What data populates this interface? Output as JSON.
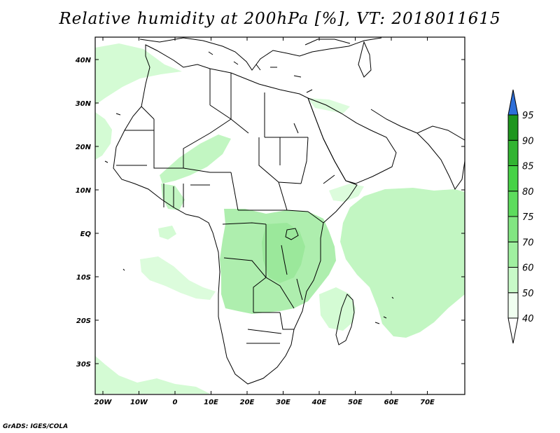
{
  "title": "Relative humidity at 200hPa [%], VT: 2018011615",
  "credit": "GrADS: IGES/COLA",
  "map": {
    "lon_labels": [
      "20W",
      "10W",
      "0",
      "10E",
      "20E",
      "30E",
      "40E",
      "50E",
      "60E",
      "70E"
    ],
    "lat_labels": [
      "40N",
      "30N",
      "20N",
      "10N",
      "EQ",
      "10S",
      "20S",
      "30S"
    ]
  },
  "colorbar": {
    "labels": [
      "40",
      "50",
      "60",
      "70",
      "75",
      "80",
      "85",
      "90",
      "95"
    ],
    "colors": [
      "#f0fff0",
      "#c8fac8",
      "#a0f0a0",
      "#82e682",
      "#5ddc5d",
      "#46d246",
      "#32b432",
      "#1e961e"
    ],
    "overflow_color": "#2e6fd8",
    "underflow_color": "#ffffff"
  }
}
